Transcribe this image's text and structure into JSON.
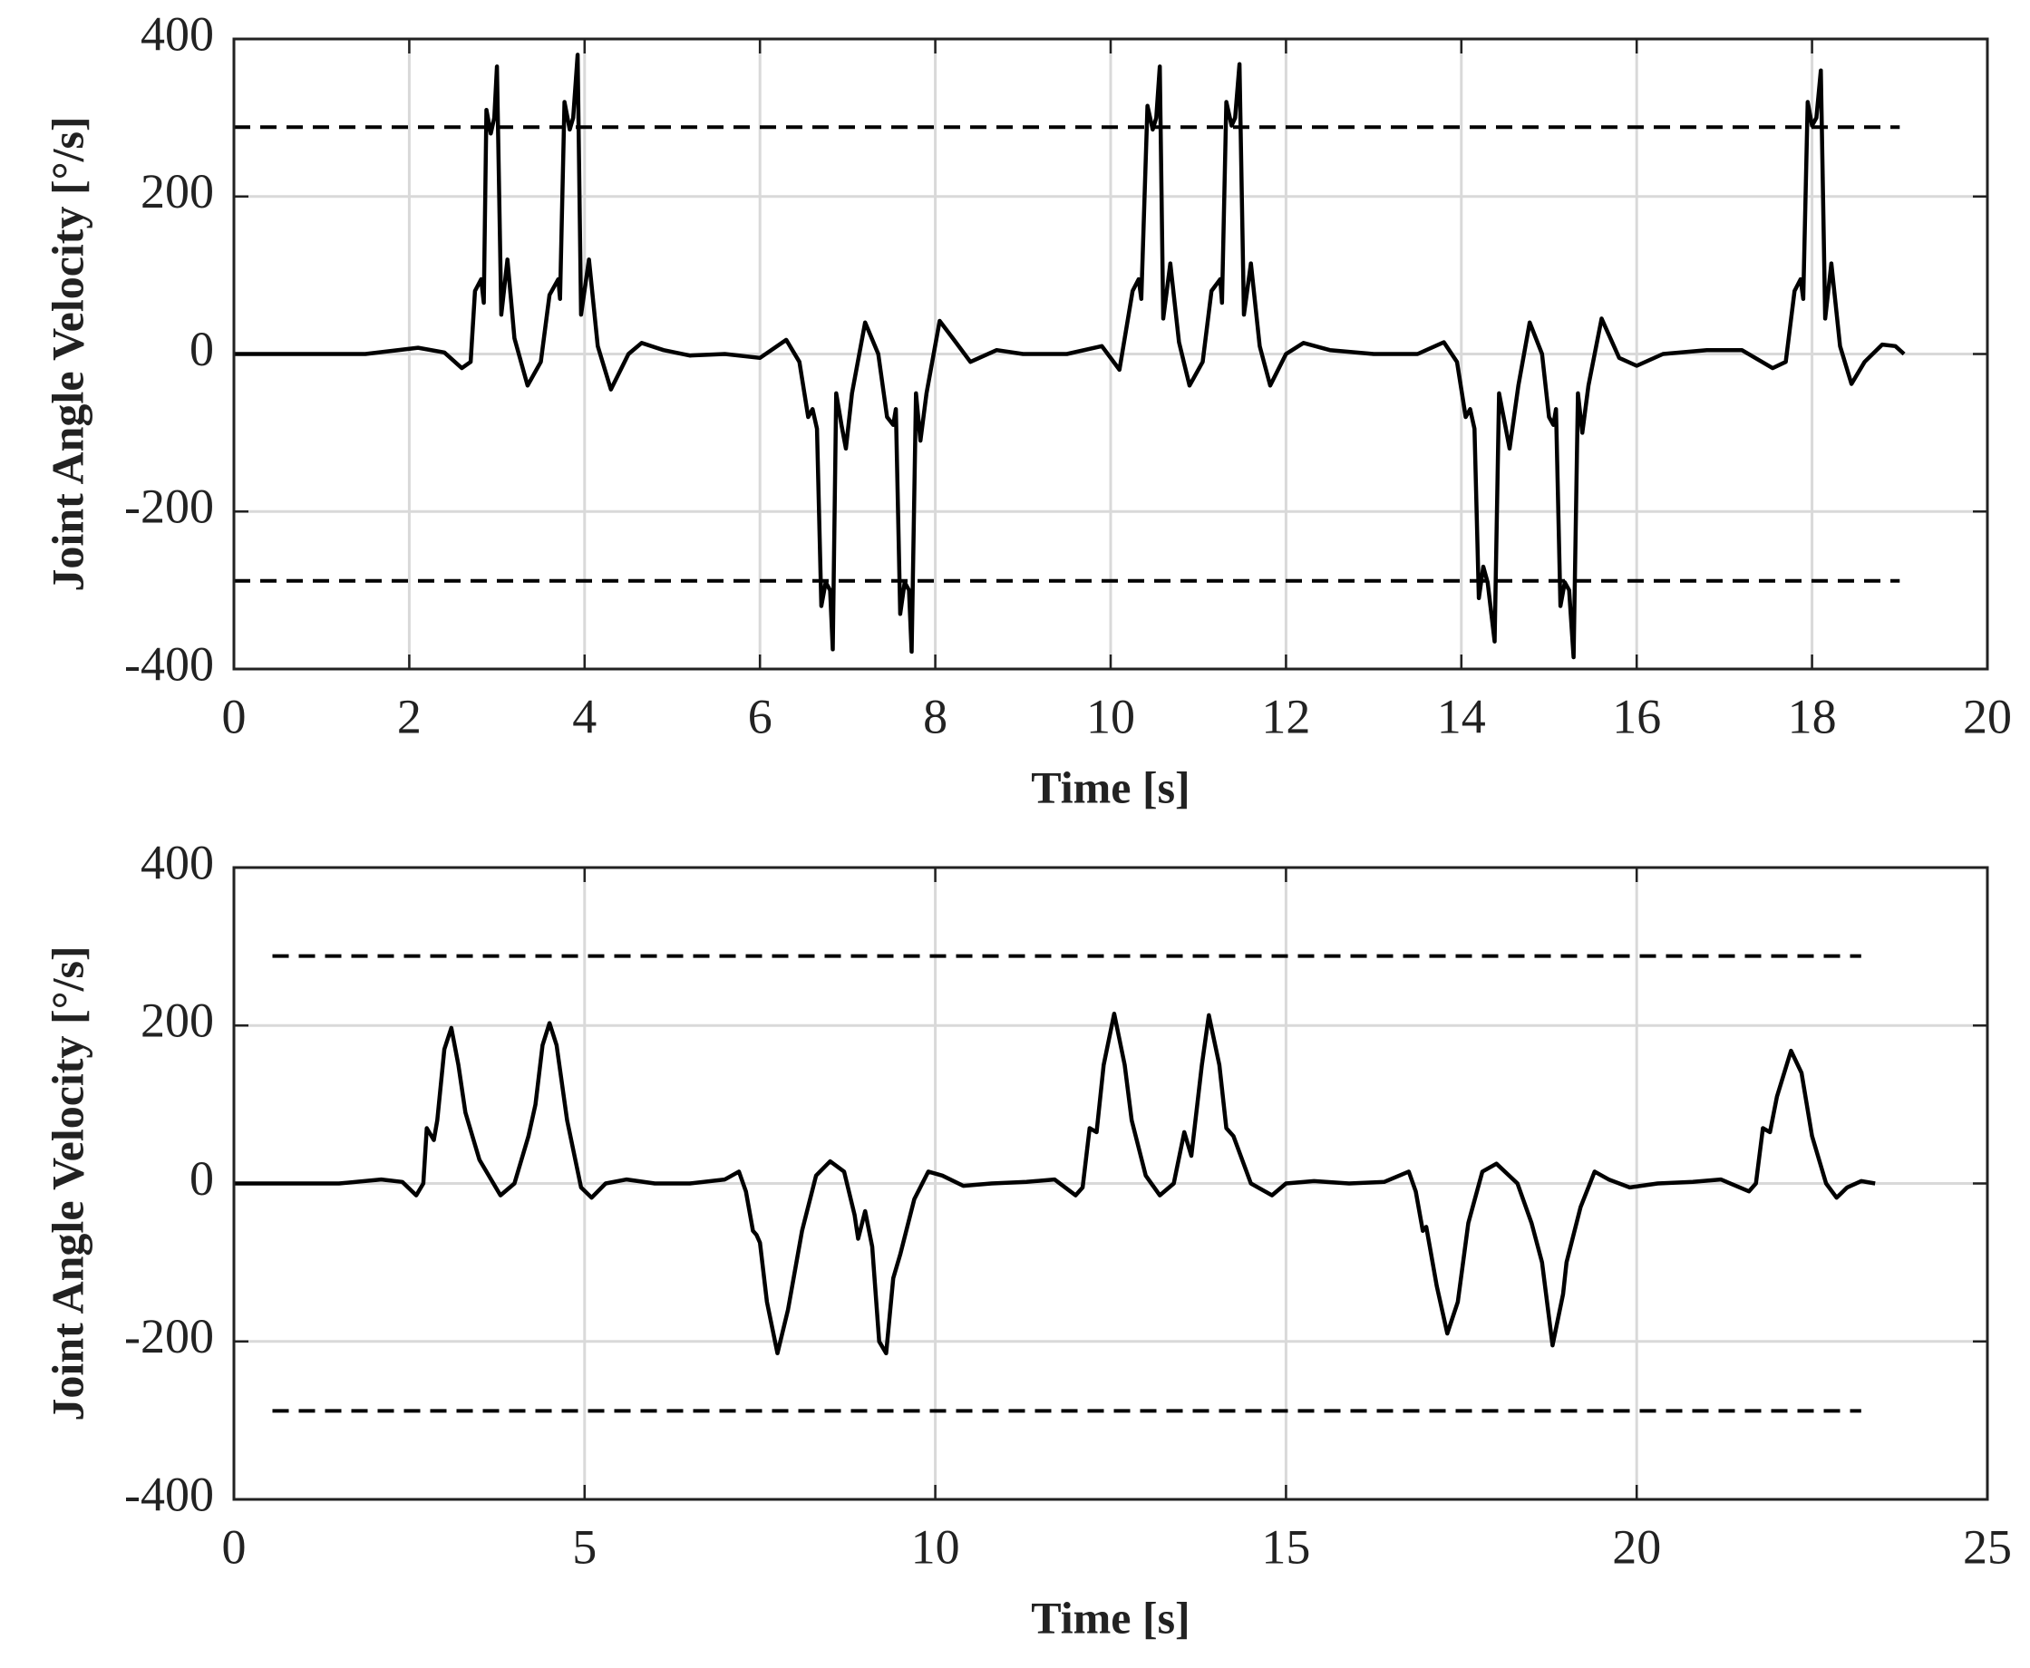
{
  "chart_data": [
    {
      "type": "line",
      "xlabel": "Time [s]",
      "ylabel": "Joint Angle Velocity [°/s]",
      "xlim": [
        0,
        20
      ],
      "ylim": [
        -400,
        400
      ],
      "xticks": [
        0,
        2,
        4,
        6,
        8,
        10,
        12,
        14,
        16,
        18,
        20
      ],
      "yticks": [
        -400,
        -200,
        0,
        200,
        400
      ],
      "grid": true,
      "series": [
        {
          "color": "#000000",
          "dashed": false,
          "x": [
            0,
            1.5,
            2.1,
            2.4,
            2.6,
            2.7,
            2.75,
            2.82,
            2.85,
            2.88,
            2.93,
            2.97,
            3.0,
            3.05,
            3.12,
            3.2,
            3.35,
            3.5,
            3.6,
            3.7,
            3.72,
            3.77,
            3.83,
            3.87,
            3.92,
            3.96,
            4.05,
            4.15,
            4.3,
            4.5,
            4.65,
            4.9,
            5.2,
            5.6,
            6.0,
            6.3,
            6.45,
            6.55,
            6.6,
            6.65,
            6.7,
            6.75,
            6.8,
            6.83,
            6.87,
            6.93,
            6.98,
            7.05,
            7.2,
            7.35,
            7.45,
            7.52,
            7.55,
            7.6,
            7.65,
            7.7,
            7.73,
            7.78,
            7.83,
            7.9,
            8.05,
            8.2,
            8.4,
            8.7,
            9.0,
            9.5,
            9.9,
            10.1,
            10.25,
            10.32,
            10.35,
            10.42,
            10.48,
            10.52,
            10.56,
            10.6,
            10.68,
            10.78,
            10.9,
            11.05,
            11.15,
            11.25,
            11.27,
            11.32,
            11.38,
            11.42,
            11.47,
            11.52,
            11.6,
            11.7,
            11.82,
            12.0,
            12.2,
            12.5,
            13.0,
            13.5,
            13.8,
            13.95,
            14.05,
            14.1,
            14.15,
            14.2,
            14.25,
            14.3,
            14.38,
            14.43,
            14.5,
            14.55,
            14.65,
            14.78,
            14.92,
            15.0,
            15.05,
            15.08,
            15.13,
            15.18,
            15.23,
            15.28,
            15.33,
            15.38,
            15.45,
            15.6,
            15.8,
            16.0,
            16.3,
            16.8,
            17.2,
            17.55,
            17.7,
            17.8,
            17.87,
            17.9,
            17.95,
            18.0,
            18.05,
            18.1,
            18.15,
            18.22,
            18.32,
            18.45,
            18.6,
            18.8,
            18.95,
            19.05
          ],
          "values": [
            0,
            0,
            8,
            2,
            -18,
            -10,
            80,
            95,
            65,
            310,
            280,
            300,
            365,
            50,
            120,
            20,
            -40,
            -10,
            75,
            95,
            70,
            320,
            285,
            300,
            380,
            50,
            120,
            10,
            -45,
            0,
            14,
            5,
            -2,
            0,
            -5,
            18,
            -10,
            -80,
            -70,
            -95,
            -320,
            -290,
            -300,
            -375,
            -50,
            -90,
            -120,
            -50,
            40,
            0,
            -80,
            -90,
            -70,
            -330,
            -290,
            -300,
            -378,
            -50,
            -110,
            -50,
            42,
            20,
            -10,
            5,
            0,
            0,
            10,
            -20,
            80,
            95,
            70,
            315,
            285,
            300,
            365,
            45,
            115,
            15,
            -40,
            -10,
            80,
            95,
            65,
            320,
            290,
            300,
            368,
            50,
            115,
            10,
            -40,
            0,
            14,
            5,
            0,
            0,
            15,
            -10,
            -80,
            -70,
            -95,
            -310,
            -270,
            -290,
            -365,
            -50,
            -90,
            -120,
            -40,
            40,
            0,
            -80,
            -90,
            -70,
            -320,
            -290,
            -300,
            -385,
            -50,
            -100,
            -40,
            45,
            -5,
            -15,
            0,
            5,
            5,
            -18,
            -10,
            80,
            95,
            70,
            320,
            290,
            300,
            360,
            45,
            115,
            10,
            -38,
            -10,
            12,
            10,
            0
          ]
        },
        {
          "color": "#000000",
          "dashed": true,
          "x": [
            0,
            19
          ],
          "values": [
            288,
            288
          ]
        },
        {
          "color": "#000000",
          "dashed": true,
          "x": [
            0,
            19
          ],
          "values": [
            -288,
            -288
          ]
        }
      ]
    },
    {
      "type": "line",
      "xlabel": "Time [s]",
      "ylabel": "Joint Angle Velocity [°/s]",
      "xlim": [
        0,
        25
      ],
      "ylim": [
        -400,
        400
      ],
      "xticks": [
        0,
        5,
        10,
        15,
        20,
        25
      ],
      "yticks": [
        -400,
        -200,
        0,
        200,
        400
      ],
      "grid": true,
      "series": [
        {
          "color": "#000000",
          "dashed": false,
          "x": [
            0,
            1.5,
            2.1,
            2.4,
            2.6,
            2.7,
            2.75,
            2.85,
            2.9,
            3.0,
            3.1,
            3.2,
            3.3,
            3.5,
            3.8,
            4.0,
            4.2,
            4.3,
            4.4,
            4.5,
            4.6,
            4.75,
            4.95,
            5.1,
            5.3,
            5.6,
            6.0,
            6.5,
            7.0,
            7.2,
            7.3,
            7.4,
            7.45,
            7.5,
            7.6,
            7.75,
            7.9,
            8.1,
            8.3,
            8.5,
            8.7,
            8.85,
            8.9,
            9.0,
            9.1,
            9.2,
            9.3,
            9.4,
            9.5,
            9.7,
            9.9,
            10.1,
            10.4,
            10.8,
            11.3,
            11.7,
            12.0,
            12.1,
            12.2,
            12.3,
            12.4,
            12.55,
            12.7,
            12.8,
            13.0,
            13.2,
            13.4,
            13.55,
            13.65,
            13.8,
            13.9,
            14.05,
            14.15,
            14.25,
            14.5,
            14.8,
            15.0,
            15.4,
            15.9,
            16.4,
            16.75,
            16.85,
            16.95,
            17.0,
            17.05,
            17.15,
            17.3,
            17.45,
            17.6,
            17.8,
            18.0,
            18.3,
            18.5,
            18.65,
            18.8,
            18.95,
            19.0,
            19.2,
            19.4,
            19.6,
            19.9,
            20.3,
            20.8,
            21.2,
            21.6,
            21.7,
            21.8,
            21.9,
            22.0,
            22.2,
            22.35,
            22.5,
            22.7,
            22.85,
            23.0,
            23.2,
            23.4
          ],
          "values": [
            0,
            0,
            5,
            2,
            -15,
            0,
            70,
            55,
            80,
            170,
            197,
            150,
            90,
            30,
            -15,
            0,
            60,
            100,
            175,
            203,
            175,
            80,
            -5,
            -18,
            0,
            5,
            0,
            0,
            5,
            15,
            -10,
            -60,
            -65,
            -75,
            -150,
            -215,
            -160,
            -60,
            10,
            28,
            15,
            -40,
            -70,
            -35,
            -80,
            -200,
            -215,
            -120,
            -90,
            -20,
            15,
            10,
            -3,
            0,
            2,
            5,
            -15,
            -5,
            70,
            65,
            150,
            215,
            150,
            80,
            10,
            -15,
            0,
            65,
            35,
            150,
            213,
            150,
            70,
            60,
            0,
            -15,
            0,
            3,
            0,
            2,
            15,
            -10,
            -60,
            -55,
            -80,
            -130,
            -190,
            -150,
            -50,
            15,
            25,
            0,
            -50,
            -100,
            -205,
            -140,
            -100,
            -30,
            15,
            5,
            -5,
            0,
            2,
            5,
            -10,
            0,
            70,
            65,
            110,
            168,
            140,
            60,
            0,
            -18,
            -5,
            3,
            0
          ]
        },
        {
          "color": "#000000",
          "dashed": true,
          "x": [
            0.55,
            23.2
          ],
          "values": [
            288,
            288
          ]
        },
        {
          "color": "#000000",
          "dashed": true,
          "x": [
            0.55,
            23.2
          ],
          "values": [
            -288,
            -288
          ]
        }
      ]
    }
  ]
}
